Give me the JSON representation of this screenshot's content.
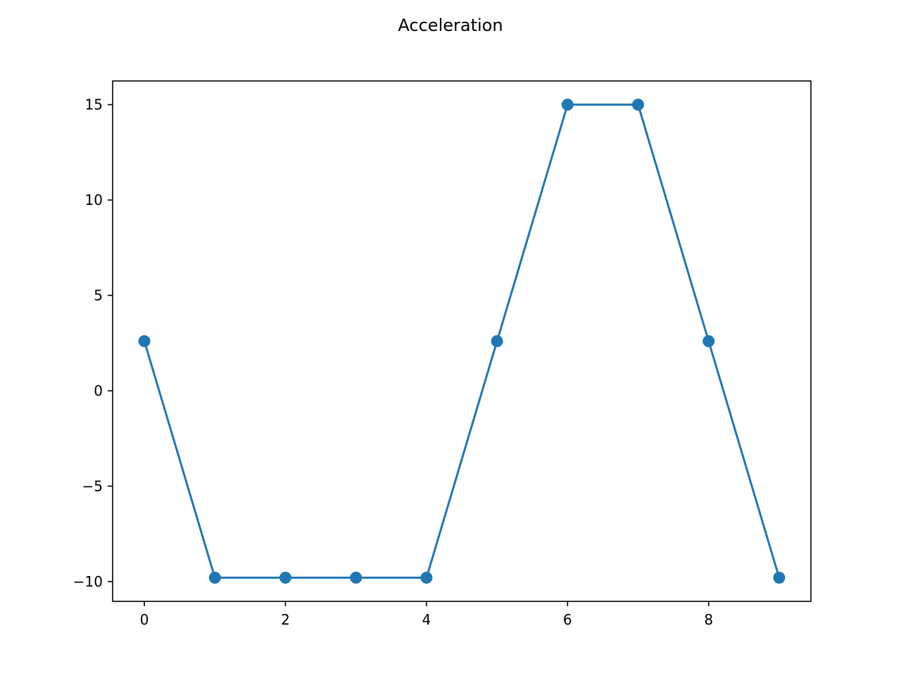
{
  "chart_data": {
    "type": "line",
    "title": "Acceleration",
    "xlabel": "",
    "ylabel": "",
    "x": [
      0,
      1,
      2,
      3,
      4,
      5,
      6,
      7,
      8,
      9
    ],
    "series": [
      {
        "values": [
          2.6,
          -9.8,
          -9.8,
          -9.8,
          -9.8,
          2.6,
          15,
          15,
          2.6,
          -9.8
        ]
      }
    ],
    "xlim": [
      -0.45,
      9.45
    ],
    "ylim": [
      -11.04,
      16.24
    ],
    "xticks": [
      0,
      2,
      4,
      6,
      8
    ],
    "xtick_labels": [
      "0",
      "2",
      "4",
      "6",
      "8"
    ],
    "yticks": [
      -10,
      -5,
      0,
      5,
      10,
      15
    ],
    "ytick_labels": [
      "−10",
      "−5",
      "0",
      "5",
      "10",
      "15"
    ],
    "grid": false,
    "markers": true,
    "colors": {
      "series": "#1f77b4",
      "axes": "#000000",
      "background": "#ffffff"
    }
  }
}
